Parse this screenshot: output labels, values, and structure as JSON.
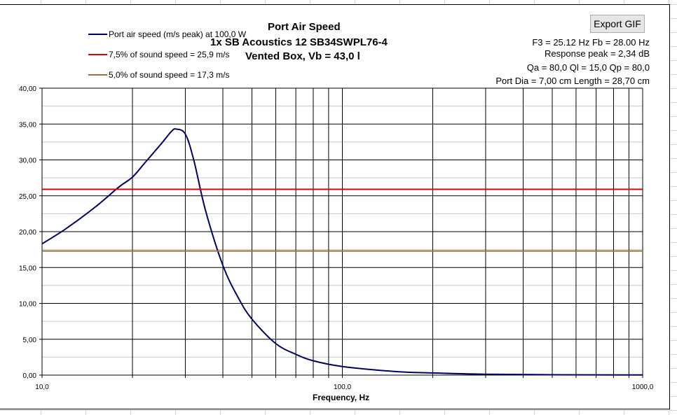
{
  "export_button": "Export GIF",
  "info": [
    "F3 = 25.12 Hz  Fb = 28.00 Hz",
    "Response peak = 2,34 dB",
    "Qa = 80,0  Ql = 15,0  Qp = 80,0",
    "Port Dia = 7,00 cm  Length = 28,70 cm"
  ],
  "chart_data": {
    "type": "line",
    "title": [
      "Port Air Speed",
      "1x SB Acoustics 12 SB34SWPL76-4",
      "Vented Box, Vb = 43,0 l"
    ],
    "xlabel": "Frequency, Hz",
    "ylabel": "",
    "xscale": "log",
    "xlim": [
      10,
      1000
    ],
    "ylim": [
      0,
      40
    ],
    "xticks": [
      10,
      100,
      1000
    ],
    "xtick_labels": [
      "10,0",
      "100,0",
      "1000,0"
    ],
    "yticks": [
      0,
      5,
      10,
      15,
      20,
      25,
      30,
      35,
      40
    ],
    "ytick_labels": [
      "0,00",
      "5,00",
      "10,00",
      "15,00",
      "20,00",
      "25,00",
      "30,00",
      "35,00",
      "40,00"
    ],
    "grid": true,
    "legend_position": "top-left",
    "series": [
      {
        "name": "Port air speed (m/s peak) at 100,0 W",
        "color": "#000066",
        "x": [
          10,
          12,
          15,
          18,
          20,
          22,
          25,
          27,
          28,
          30,
          32,
          35,
          40,
          45,
          50,
          60,
          70,
          80,
          100,
          150,
          200,
          300,
          500,
          1000
        ],
        "y": [
          18.3,
          20.4,
          23.4,
          26.2,
          27.6,
          29.6,
          32.3,
          34.0,
          34.3,
          33.6,
          30.0,
          23.0,
          15.3,
          10.8,
          7.8,
          4.4,
          2.9,
          2.0,
          1.2,
          0.5,
          0.3,
          0.12,
          0.05,
          0.02
        ]
      },
      {
        "name": "7,5% of sound speed = 25,9 m/s",
        "color": "#e00000",
        "x": [
          10,
          1000
        ],
        "y": [
          25.9,
          25.9
        ]
      },
      {
        "name": "5,0% of sound speed = 17,3 m/s",
        "color": "#9b7040",
        "x": [
          10,
          1000
        ],
        "y": [
          17.3,
          17.3
        ]
      }
    ]
  }
}
